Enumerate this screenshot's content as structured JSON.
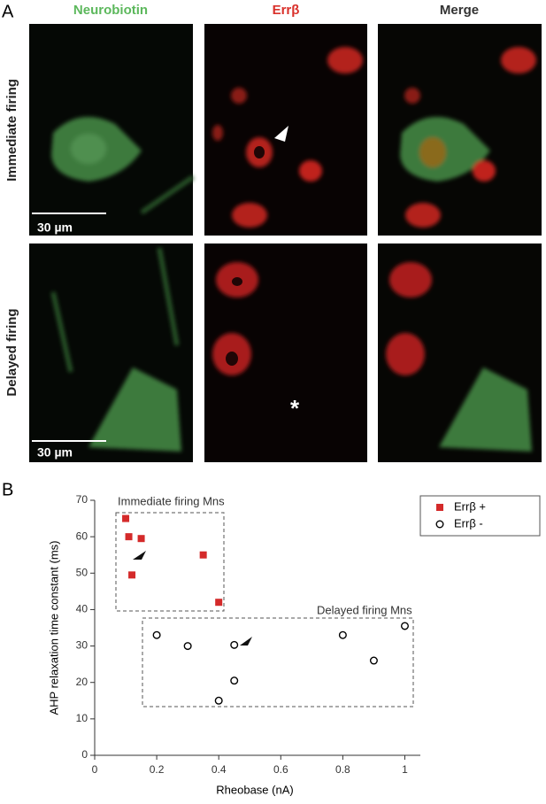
{
  "panel_a": {
    "label": "A",
    "columns": [
      "Neurobiotin",
      "Errβ",
      "Merge"
    ],
    "rows": [
      "Immediate firing",
      "Delayed firing"
    ],
    "scale_bars": [
      "30 µm",
      "30 µm"
    ],
    "asterisk": "*"
  },
  "chart_data": {
    "type": "scatter",
    "panel_label": "B",
    "xlabel": "Rheobase (nA)",
    "ylabel": "AHP relaxation time constant (ms)",
    "annotations": [
      "Immediate firing Mns",
      "Delayed firing Mns"
    ],
    "xlim": [
      0,
      1.05
    ],
    "ylim": [
      0,
      70
    ],
    "xticks": [
      0,
      0.2,
      0.4,
      0.6,
      0.8,
      1
    ],
    "yticks": [
      0,
      10,
      20,
      30,
      40,
      50,
      60,
      70
    ],
    "legend": "upper right",
    "series": [
      {
        "name": "Errβ +",
        "color": "#d42a2a",
        "marker": "square",
        "x": [
          0.1,
          0.11,
          0.15,
          0.12,
          0.35,
          0.4
        ],
        "values": [
          65,
          60,
          59.5,
          49.5,
          55,
          42
        ]
      },
      {
        "name": "Errβ -",
        "color": "#000000",
        "marker": "circle",
        "x": [
          0.2,
          0.3,
          0.4,
          0.45,
          0.45,
          0.8,
          0.9,
          1
        ],
        "values": [
          33,
          30,
          15,
          20.5,
          30.3,
          33,
          26,
          35.5
        ]
      }
    ]
  }
}
